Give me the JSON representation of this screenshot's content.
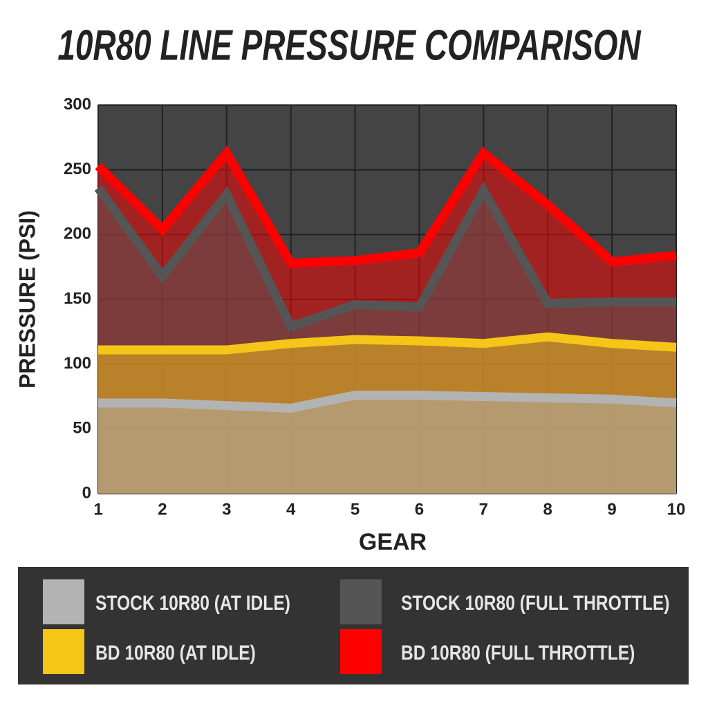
{
  "chart_data": {
    "type": "area",
    "title": "10R80 LINE PRESSURE COMPARISON",
    "x_label": "GEAR",
    "y_label": "PRESSURE (PSI)",
    "x": [
      1,
      2,
      3,
      4,
      5,
      6,
      7,
      8,
      9,
      10
    ],
    "xlim": [
      1,
      10
    ],
    "xticks": [
      1,
      2,
      3,
      4,
      5,
      6,
      7,
      8,
      9,
      10
    ],
    "ylim": [
      0,
      300
    ],
    "yticks": [
      0,
      50,
      100,
      150,
      200,
      250,
      300
    ],
    "grid": true,
    "legend": "bottom",
    "series": [
      {
        "name": "BD 10R80 (FULL THROTTLE)",
        "color": "#ff0000",
        "values": [
          253,
          204,
          263,
          178,
          180,
          186,
          263,
          223,
          179,
          184
        ]
      },
      {
        "name": "STOCK 10R80 (FULL THROTTLE)",
        "color": "#555555",
        "values": [
          236,
          168,
          231,
          129,
          146,
          144,
          234,
          147,
          148,
          148
        ]
      },
      {
        "name": "BD 10R80 (AT IDLE)",
        "color": "#f5c518",
        "values": [
          111,
          111,
          111,
          116,
          119,
          118,
          116,
          121,
          116,
          113
        ]
      },
      {
        "name": "STOCK 10R80 (AT IDLE)",
        "color": "#b3b3b3",
        "values": [
          70,
          70,
          68,
          66,
          76,
          76,
          75,
          74,
          73,
          70
        ]
      }
    ]
  }
}
